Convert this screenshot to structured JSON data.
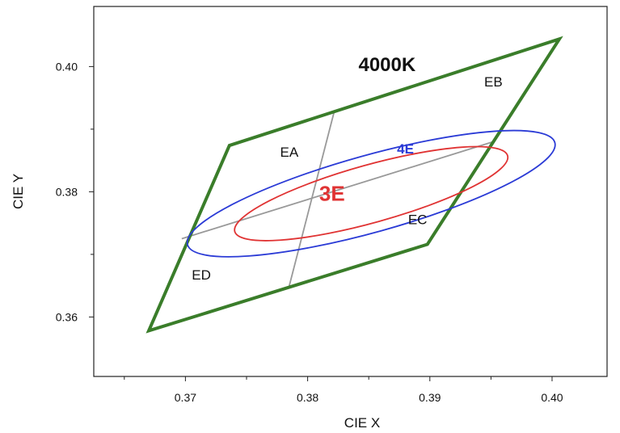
{
  "chart_data": {
    "type": "scatter",
    "xlabel": "CIE X",
    "ylabel": "CIE Y",
    "xlim": [
      0.3625,
      0.4045
    ],
    "ylim": [
      0.3505,
      0.4096
    ],
    "xticks": [
      0.37,
      0.38,
      0.39,
      0.4
    ],
    "xtick_labels": [
      "0.37",
      "0.38",
      "0.39",
      "0.40"
    ],
    "yticks": [
      0.36,
      0.38,
      0.4
    ],
    "ytick_labels": [
      "0.36",
      "0.38",
      "0.40"
    ],
    "grid": false,
    "quadrangle": {
      "label": "4000K",
      "color": "#3a7d2a",
      "points": [
        [
          0.3736,
          0.3874
        ],
        [
          0.4006,
          0.4044
        ],
        [
          0.3898,
          0.3716
        ],
        [
          0.367,
          0.3578
        ]
      ]
    },
    "dividers": {
      "color": "#999999",
      "segments": [
        [
          [
            0.3822,
            0.393
          ],
          [
            0.3785,
            0.365
          ]
        ],
        [
          [
            0.3952,
            0.388
          ],
          [
            0.3697,
            0.3725
          ]
        ]
      ]
    },
    "ellipses": [
      {
        "label": "4E",
        "color": "#2b3bd6",
        "center": [
          0.3852,
          0.3797
        ],
        "a": 0.0171,
        "b": 0.0048,
        "angle": 28.5
      },
      {
        "label": "3E",
        "color": "#e03333",
        "center": [
          0.3852,
          0.3797
        ],
        "a": 0.0127,
        "b": 0.0036,
        "angle": 28.5
      }
    ],
    "region_labels": [
      {
        "text": "EA",
        "x": 0.3785,
        "y": 0.3856
      },
      {
        "text": "EB",
        "x": 0.3952,
        "y": 0.3968
      },
      {
        "text": "EC",
        "x": 0.389,
        "y": 0.3748
      },
      {
        "text": "ED",
        "x": 0.3713,
        "y": 0.366
      }
    ],
    "title_label": {
      "text": "4000K",
      "x": 0.3865,
      "y": 0.3993
    },
    "ellipse_labels": [
      {
        "text": "3E",
        "x": 0.382,
        "y": 0.3797,
        "color": "#e03333"
      },
      {
        "text": "4E",
        "x": 0.388,
        "y": 0.3869,
        "color": "#2b3bd6"
      }
    ]
  }
}
